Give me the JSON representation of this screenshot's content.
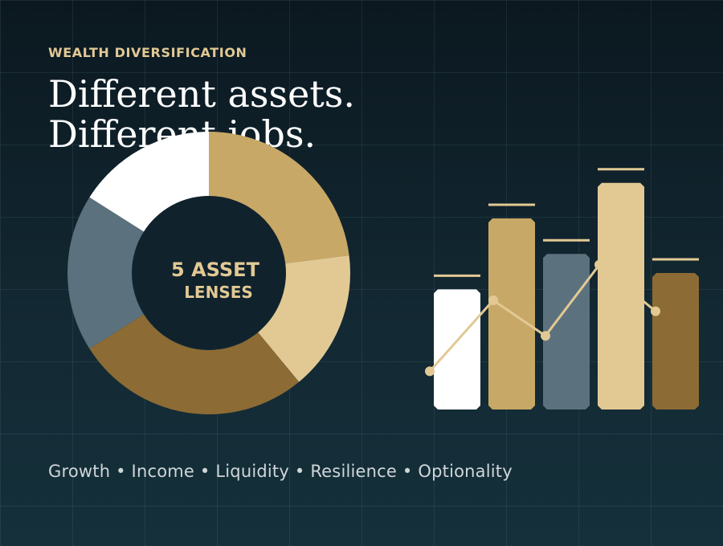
{
  "eyebrow": "WEALTH DIVERSIFICATION",
  "headline": {
    "line1": "Different assets.",
    "line2": "Different jobs."
  },
  "donut": {
    "center_line1": "5 ASSET",
    "center_line2": "LENSES"
  },
  "footer": "Growth • Income • Liquidity • Resilience • Optionality",
  "colors": {
    "background": "#0f2029",
    "accent": "#e2c994",
    "gold": "#c8a866",
    "light_gold": "#e2c994",
    "slate": "#5c717e",
    "bronze": "#8c6b35",
    "white": "#ffffff"
  },
  "chart_data": [
    {
      "type": "pie",
      "variant": "donut",
      "values": [
        23,
        16,
        27,
        18,
        16
      ],
      "colors": [
        "#c8a866",
        "#e2c994",
        "#8c6b35",
        "#5c717e",
        "#ffffff"
      ]
    },
    {
      "type": "bar",
      "values": [
        4.4,
        7.0,
        5.7,
        8.3,
        5.0
      ],
      "target_marks": [
        4.9,
        7.5,
        6.2,
        8.8,
        5.5
      ],
      "ylim": [
        0,
        10
      ],
      "colors": [
        "#ffffff",
        "#c8a866",
        "#5c717e",
        "#e2c994",
        "#8c6b35"
      ],
      "line": {
        "values": [
          1.4,
          4.0,
          2.7,
          5.3,
          3.6
        ],
        "color": "#e2c994"
      }
    }
  ]
}
